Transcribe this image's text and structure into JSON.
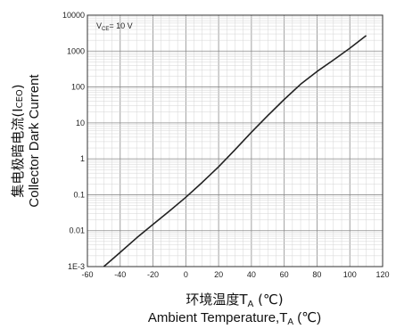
{
  "chart_data": {
    "type": "line",
    "title": "",
    "x_tick_labels": [
      "-60",
      "-40",
      "-20",
      "0",
      "20",
      "40",
      "60",
      "80",
      "100",
      "120"
    ],
    "y_tick_labels": [
      "1E-3",
      "0.01",
      "0.1",
      "1",
      "10",
      "100",
      "1000",
      "10000"
    ],
    "xlim": [
      -60,
      120
    ],
    "ylim": [
      0.001,
      10000
    ],
    "y_scale": "log",
    "grid": true,
    "ylabel_cn_main": "集电极暗电流(I",
    "ylabel_cn_sub": "CEO",
    "ylabel_cn_tail": ")",
    "ylabel_en": "Collector Dark Current",
    "xlabel_cn_main": "环境温度T",
    "xlabel_cn_sub": "A",
    "xlabel_cn_tail": " (℃)",
    "xlabel_en_main": "Ambient Temperature,T",
    "xlabel_en_sub": "A",
    "xlabel_en_tail": " (℃)",
    "annotation_main": "V",
    "annotation_sub": "CE",
    "annotation_tail": "= 10 V",
    "series": [
      {
        "x": [
          -50,
          -40,
          -30,
          -20,
          -10,
          0,
          10,
          20,
          30,
          40,
          50,
          60,
          70,
          80,
          90,
          100,
          110
        ],
        "y": [
          0.001,
          0.0025,
          0.0063,
          0.015,
          0.035,
          0.085,
          0.22,
          0.6,
          1.8,
          5.5,
          16,
          45,
          120,
          270,
          560,
          1200,
          2700
        ],
        "color": "#222222"
      }
    ]
  }
}
